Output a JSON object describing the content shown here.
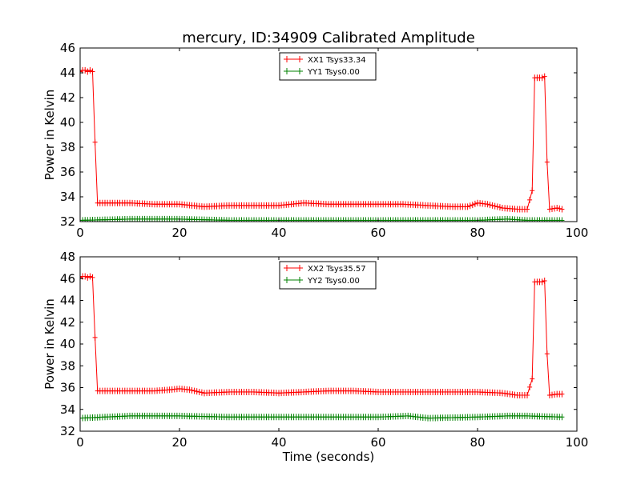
{
  "chart_data": [
    {
      "type": "line",
      "title": "mercury, ID:34909 Calibrated Amplitude",
      "xlabel": "",
      "ylabel": "Power in Kelvin",
      "xlim": [
        0,
        100
      ],
      "ylim": [
        32,
        46
      ],
      "xticks": [
        "0",
        "20",
        "40",
        "60",
        "80",
        "100"
      ],
      "yticks": [
        "32",
        "34",
        "36",
        "38",
        "40",
        "42",
        "44",
        "46"
      ],
      "grid": false,
      "legend_position": "top-center",
      "series": [
        {
          "name": "XX1 Tsys33.34",
          "color": "#ff0000",
          "marker": "plus",
          "points": [
            [
              0,
              44.1
            ],
            [
              0.5,
              44.2
            ],
            [
              1,
              44.2
            ],
            [
              1.5,
              44.1
            ],
            [
              2,
              44.2
            ],
            [
              2.5,
              44.1
            ],
            [
              3,
              38.4
            ],
            [
              3.5,
              33.5
            ],
            [
              5,
              33.5
            ],
            [
              10,
              33.5
            ],
            [
              15,
              33.4
            ],
            [
              20,
              33.4
            ],
            [
              25,
              33.2
            ],
            [
              30,
              33.3
            ],
            [
              35,
              33.3
            ],
            [
              40,
              33.3
            ],
            [
              45,
              33.5
            ],
            [
              50,
              33.4
            ],
            [
              55,
              33.4
            ],
            [
              60,
              33.4
            ],
            [
              65,
              33.4
            ],
            [
              70,
              33.3
            ],
            [
              75,
              33.2
            ],
            [
              78,
              33.2
            ],
            [
              80,
              33.5
            ],
            [
              82,
              33.4
            ],
            [
              85,
              33.1
            ],
            [
              88,
              33.0
            ],
            [
              90,
              33.0
            ],
            [
              91,
              34.5
            ],
            [
              91.5,
              43.6
            ],
            [
              92,
              43.6
            ],
            [
              92.5,
              43.6
            ],
            [
              93,
              43.6
            ],
            [
              93.5,
              43.7
            ],
            [
              94,
              36.8
            ],
            [
              94.5,
              33.0
            ],
            [
              96,
              33.1
            ],
            [
              97,
              33.0
            ]
          ]
        },
        {
          "name": "YY1 Tsys0.00",
          "color": "#008000",
          "marker": "plus",
          "points": [
            [
              0,
              32.1
            ],
            [
              10,
              32.2
            ],
            [
              20,
              32.2
            ],
            [
              30,
              32.1
            ],
            [
              40,
              32.1
            ],
            [
              50,
              32.1
            ],
            [
              60,
              32.1
            ],
            [
              70,
              32.1
            ],
            [
              80,
              32.1
            ],
            [
              86,
              32.2
            ],
            [
              90,
              32.1
            ],
            [
              97,
              32.1
            ]
          ]
        }
      ]
    },
    {
      "type": "line",
      "title": "",
      "xlabel": "Time (seconds)",
      "ylabel": "Power in Kelvin",
      "xlim": [
        0,
        100
      ],
      "ylim": [
        32,
        48
      ],
      "xticks": [
        "0",
        "20",
        "40",
        "60",
        "80",
        "100"
      ],
      "yticks": [
        "32",
        "34",
        "36",
        "38",
        "40",
        "42",
        "44",
        "46",
        "48"
      ],
      "grid": false,
      "legend_position": "top-center",
      "series": [
        {
          "name": "XX2 Tsys35.57",
          "color": "#ff0000",
          "marker": "plus",
          "points": [
            [
              0,
              46.1
            ],
            [
              0.5,
              46.2
            ],
            [
              1,
              46.2
            ],
            [
              1.5,
              46.1
            ],
            [
              2,
              46.2
            ],
            [
              2.5,
              46.1
            ],
            [
              3,
              40.6
            ],
            [
              3.5,
              35.7
            ],
            [
              5,
              35.7
            ],
            [
              10,
              35.7
            ],
            [
              15,
              35.7
            ],
            [
              18,
              35.8
            ],
            [
              20,
              35.9
            ],
            [
              22,
              35.8
            ],
            [
              25,
              35.5
            ],
            [
              30,
              35.6
            ],
            [
              35,
              35.6
            ],
            [
              40,
              35.5
            ],
            [
              45,
              35.6
            ],
            [
              50,
              35.7
            ],
            [
              55,
              35.7
            ],
            [
              60,
              35.6
            ],
            [
              65,
              35.6
            ],
            [
              70,
              35.6
            ],
            [
              75,
              35.6
            ],
            [
              80,
              35.6
            ],
            [
              85,
              35.5
            ],
            [
              88,
              35.3
            ],
            [
              90,
              35.3
            ],
            [
              91,
              36.8
            ],
            [
              91.5,
              45.7
            ],
            [
              92,
              45.7
            ],
            [
              92.5,
              45.7
            ],
            [
              93,
              45.7
            ],
            [
              93.5,
              45.8
            ],
            [
              94,
              39.1
            ],
            [
              94.5,
              35.3
            ],
            [
              96,
              35.4
            ],
            [
              97,
              35.4
            ]
          ]
        },
        {
          "name": "YY2 Tsys0.00",
          "color": "#008000",
          "marker": "plus",
          "points": [
            [
              0,
              33.2
            ],
            [
              5,
              33.3
            ],
            [
              10,
              33.4
            ],
            [
              20,
              33.4
            ],
            [
              30,
              33.3
            ],
            [
              40,
              33.3
            ],
            [
              50,
              33.3
            ],
            [
              60,
              33.3
            ],
            [
              66,
              33.4
            ],
            [
              70,
              33.2
            ],
            [
              80,
              33.3
            ],
            [
              86,
              33.4
            ],
            [
              90,
              33.4
            ],
            [
              97,
              33.3
            ]
          ]
        }
      ]
    }
  ]
}
